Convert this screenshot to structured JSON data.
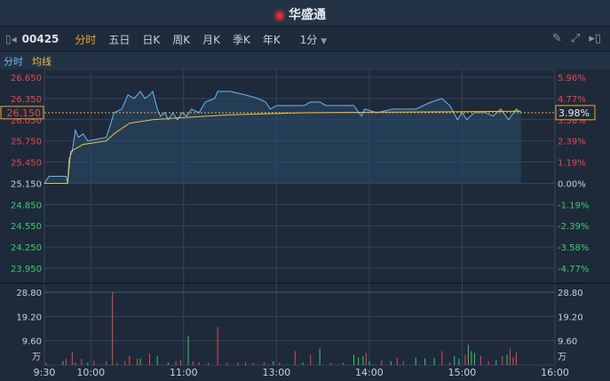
{
  "header": {
    "brand": "华盛通"
  },
  "toolbar": {
    "code": "00425",
    "tabs": [
      {
        "label": "分时",
        "active": true
      },
      {
        "label": "五日"
      },
      {
        "label": "日K"
      },
      {
        "label": "周K"
      },
      {
        "label": "月K"
      },
      {
        "label": "季K"
      },
      {
        "label": "年K"
      }
    ],
    "interval": "1分",
    "icons": [
      "collapse-left-icon",
      "pencil-icon",
      "fullscreen-icon",
      "expand-right-icon"
    ]
  },
  "legend": {
    "line": "分时",
    "avg": "均线"
  },
  "colors": {
    "price": "#6fb8f0",
    "avg": "#f0c040",
    "up": "#e84a4a",
    "down": "#3ccc6a",
    "grid": "#34445a"
  },
  "chart_data": [
    {
      "type": "line",
      "x_ticks": [
        "9:30",
        "10:00",
        "11:00",
        "13:00",
        "14:00",
        "15:00",
        "16:00"
      ],
      "y_left_ticks": [
        "26.650",
        "26.350",
        "26.050",
        "25.750",
        "25.450",
        "25.150",
        "24.850",
        "24.550",
        "24.250",
        "23.950"
      ],
      "y_right_ticks": [
        "5.96%",
        "4.77%",
        "3.58%",
        "2.39%",
        "1.19%",
        "0.00%",
        "-1.19%",
        "-2.39%",
        "-3.58%",
        "-4.77%"
      ],
      "ylim": [
        23.95,
        26.65
      ],
      "prev_close": 25.15,
      "current_price": "26.150",
      "current_pct": "3.98%",
      "series": [
        {
          "name": "分时",
          "points": [
            [
              0,
              25.15
            ],
            [
              3,
              25.25
            ],
            [
              14,
              25.25
            ],
            [
              15,
              25.15
            ],
            [
              16,
              25.5
            ],
            [
              18,
              25.6
            ],
            [
              20,
              25.9
            ],
            [
              22,
              25.8
            ],
            [
              25,
              25.85
            ],
            [
              28,
              25.75
            ],
            [
              40,
              25.8
            ],
            [
              43,
              26.0
            ],
            [
              45,
              26.15
            ],
            [
              50,
              26.2
            ],
            [
              54,
              26.4
            ],
            [
              58,
              26.35
            ],
            [
              62,
              26.45
            ],
            [
              65,
              26.35
            ],
            [
              68,
              26.4
            ],
            [
              70,
              26.45
            ],
            [
              73,
              26.2
            ],
            [
              75,
              26.1
            ],
            [
              78,
              26.15
            ],
            [
              80,
              26.05
            ],
            [
              83,
              26.15
            ],
            [
              86,
              26.05
            ],
            [
              89,
              26.15
            ],
            [
              92,
              26.1
            ],
            [
              95,
              26.2
            ],
            [
              100,
              26.15
            ],
            [
              104,
              26.3
            ],
            [
              110,
              26.35
            ],
            [
              112,
              26.45
            ],
            [
              120,
              26.45
            ],
            [
              130,
              26.4
            ],
            [
              138,
              26.35
            ],
            [
              143,
              26.3
            ],
            [
              146,
              26.2
            ],
            [
              150,
              26.25
            ],
            [
              168,
              26.25
            ],
            [
              172,
              26.3
            ],
            [
              178,
              26.3
            ],
            [
              182,
              26.25
            ],
            [
              200,
              26.25
            ],
            [
              205,
              26.1
            ],
            [
              207,
              26.2
            ],
            [
              215,
              26.15
            ],
            [
              225,
              26.2
            ],
            [
              240,
              26.2
            ],
            [
              250,
              26.3
            ],
            [
              257,
              26.35
            ],
            [
              262,
              26.25
            ],
            [
              267,
              26.05
            ],
            [
              270,
              26.15
            ],
            [
              273,
              26.05
            ],
            [
              278,
              26.15
            ],
            [
              285,
              26.15
            ],
            [
              290,
              26.1
            ],
            [
              295,
              26.2
            ],
            [
              300,
              26.05
            ],
            [
              305,
              26.2
            ],
            [
              308,
              26.15
            ]
          ]
        },
        {
          "name": "均线",
          "points": [
            [
              0,
              25.15
            ],
            [
              15,
              25.15
            ],
            [
              17,
              25.6
            ],
            [
              25,
              25.7
            ],
            [
              40,
              25.75
            ],
            [
              45,
              25.85
            ],
            [
              55,
              26.0
            ],
            [
              70,
              26.05
            ],
            [
              90,
              26.08
            ],
            [
              120,
              26.12
            ],
            [
              170,
              26.15
            ],
            [
              250,
              26.16
            ],
            [
              308,
              26.17
            ]
          ]
        }
      ]
    },
    {
      "type": "bar",
      "y_ticks": [
        "28.80",
        "19.20",
        "9.60"
      ],
      "unit": "万",
      "ylim": [
        0,
        28.8
      ],
      "bars": [
        [
          1,
          1,
          "up"
        ],
        [
          12,
          1.5,
          "down"
        ],
        [
          14,
          2.5,
          "up"
        ],
        [
          18,
          5,
          "up"
        ],
        [
          20,
          1,
          "up"
        ],
        [
          24,
          2.5,
          "up"
        ],
        [
          28,
          1,
          "down"
        ],
        [
          32,
          1.8,
          "up"
        ],
        [
          40,
          1.5,
          "up"
        ],
        [
          44,
          28.8,
          "up"
        ],
        [
          47,
          1,
          "up"
        ],
        [
          52,
          1.5,
          "up"
        ],
        [
          55,
          3.5,
          "up"
        ],
        [
          60,
          2.5,
          "up"
        ],
        [
          62,
          2.5,
          "down"
        ],
        [
          68,
          4.5,
          "up"
        ],
        [
          73,
          3.5,
          "down"
        ],
        [
          80,
          1,
          "down"
        ],
        [
          85,
          1.5,
          "up"
        ],
        [
          88,
          2,
          "up"
        ],
        [
          93,
          11.5,
          "down"
        ],
        [
          96,
          1.5,
          "up"
        ],
        [
          100,
          1,
          "up"
        ],
        [
          106,
          1,
          "up"
        ],
        [
          112,
          15,
          "up"
        ],
        [
          118,
          1,
          "up"
        ],
        [
          125,
          1,
          "up"
        ],
        [
          130,
          1.2,
          "up"
        ],
        [
          135,
          1,
          "up"
        ],
        [
          142,
          1.2,
          "up"
        ],
        [
          148,
          1.5,
          "down"
        ],
        [
          152,
          1,
          "up"
        ],
        [
          162,
          5.5,
          "up"
        ],
        [
          167,
          1,
          "down"
        ],
        [
          172,
          4,
          "up"
        ],
        [
          178,
          6.5,
          "down"
        ],
        [
          185,
          1,
          "up"
        ],
        [
          193,
          1,
          "up"
        ],
        [
          200,
          4,
          "down"
        ],
        [
          203,
          3,
          "down"
        ],
        [
          206,
          3.5,
          "down"
        ],
        [
          208,
          4.8,
          "up"
        ],
        [
          210,
          1.5,
          "down"
        ],
        [
          218,
          2,
          "up"
        ],
        [
          224,
          1.5,
          "down"
        ],
        [
          228,
          3,
          "up"
        ],
        [
          232,
          1.5,
          "up"
        ],
        [
          240,
          2.8,
          "down"
        ],
        [
          246,
          2.6,
          "down"
        ],
        [
          252,
          2.8,
          "down"
        ],
        [
          257,
          5.5,
          "up"
        ],
        [
          262,
          1,
          "up"
        ],
        [
          265,
          3.5,
          "down"
        ],
        [
          268,
          2.5,
          "down"
        ],
        [
          272,
          4,
          "up"
        ],
        [
          274,
          8,
          "down"
        ],
        [
          276,
          5.5,
          "down"
        ],
        [
          278,
          4.8,
          "down"
        ],
        [
          282,
          3.5,
          "up"
        ],
        [
          287,
          1.5,
          "up"
        ],
        [
          292,
          2,
          "down"
        ],
        [
          296,
          3.5,
          "up"
        ],
        [
          299,
          4,
          "down"
        ],
        [
          301,
          6.5,
          "up"
        ],
        [
          303,
          3,
          "up"
        ],
        [
          305,
          5,
          "up"
        ]
      ]
    }
  ]
}
